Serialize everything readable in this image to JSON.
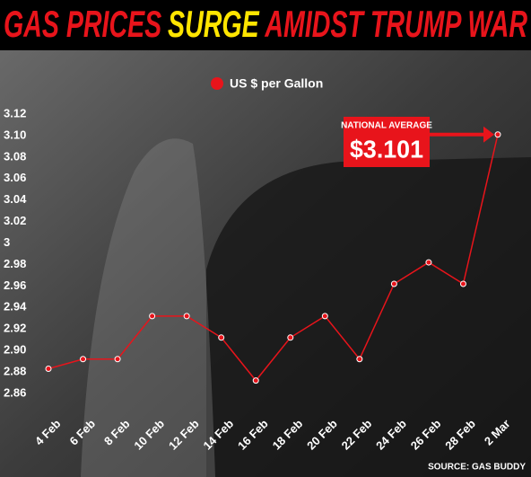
{
  "chart_data": {
    "type": "line",
    "title": [
      "GAS PRICES",
      "SURGE",
      "AMIDST TRUMP WAR"
    ],
    "title_colors": [
      "#e8141b",
      "#ffe500",
      "#e8141b"
    ],
    "categories": [
      "4 Feb",
      "6 Feb",
      "8 Feb",
      "10 Feb",
      "12 Feb",
      "14 Feb",
      "16 Feb",
      "18 Feb",
      "20 Feb",
      "22 Feb",
      "24 Feb",
      "26 Feb",
      "28 Feb",
      "2 Mar"
    ],
    "series": [
      {
        "name": "US $ per Gallon",
        "color": "#e8141b",
        "values": [
          2.883,
          2.892,
          2.892,
          2.932,
          2.932,
          2.912,
          2.872,
          2.912,
          2.932,
          2.892,
          2.962,
          2.982,
          2.962,
          3.101
        ],
        "value_labels": [
          null,
          null,
          null,
          null,
          null,
          null,
          null,
          null,
          null,
          null,
          null,
          null,
          null,
          "$3.101"
        ]
      }
    ],
    "annotation": "NATIONAL AVERAGE",
    "ylim": [
      2.86,
      3.12
    ],
    "yticks": [
      2.86,
      2.88,
      {
        "value": 2.9,
        "label": "2.90"
      },
      2.92,
      2.94,
      2.96,
      2.98,
      3,
      3.02,
      3.04,
      3.06,
      3.08,
      {
        "value": 3.1,
        "label": "3.10"
      },
      3.12
    ],
    "source": "SOURCE: GAS BUDDY"
  }
}
